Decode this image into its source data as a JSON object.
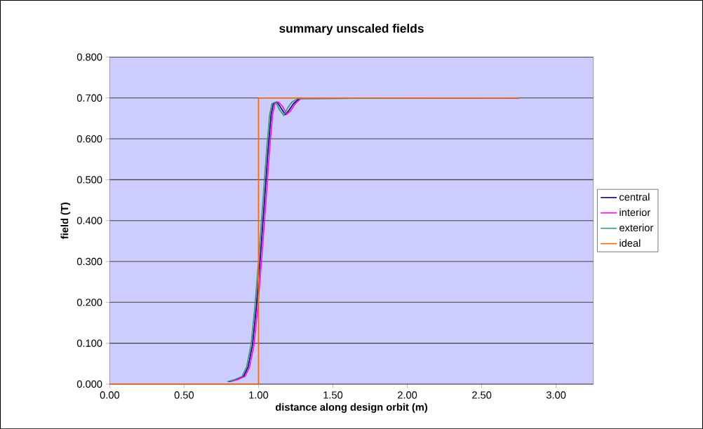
{
  "chart_data": {
    "type": "line",
    "title": "summary unscaled fields",
    "xlabel": "distance along design orbit  (m)",
    "ylabel": "field (T)",
    "xlim": [
      0,
      3.25
    ],
    "xticks": [
      {
        "value": 0,
        "label": "0.00"
      },
      {
        "value": 0.5,
        "label": "0.50"
      },
      {
        "value": 1,
        "label": "1.00"
      },
      {
        "value": 1.5,
        "label": "1.50"
      },
      {
        "value": 2,
        "label": "2.00"
      },
      {
        "value": 2.5,
        "label": "2.50"
      },
      {
        "value": 3,
        "label": "3.00"
      }
    ],
    "ylim": [
      0,
      0.8
    ],
    "yticks": [
      {
        "value": 0,
        "label": "0.000"
      },
      {
        "value": 0.1,
        "label": "0.100"
      },
      {
        "value": 0.2,
        "label": "0.200"
      },
      {
        "value": 0.3,
        "label": "0.300"
      },
      {
        "value": 0.4,
        "label": "0.400"
      },
      {
        "value": 0.5,
        "label": "0.500"
      },
      {
        "value": 0.6,
        "label": "0.600"
      },
      {
        "value": 0.7,
        "label": "0.700"
      },
      {
        "value": 0.8,
        "label": "0.800"
      }
    ],
    "grid": "y",
    "legend": "right",
    "line_style": "solid",
    "marker": "none",
    "series": [
      {
        "name": "central",
        "color": "#000080",
        "x": [
          0.8,
          0.85,
          0.9,
          0.93,
          0.96,
          0.985,
          1.01,
          1.04,
          1.065,
          1.085,
          1.1,
          1.125,
          1.15,
          1.18,
          1.205,
          1.235,
          1.275,
          2.75
        ],
        "values": [
          0.006,
          0.011,
          0.019,
          0.042,
          0.097,
          0.187,
          0.3,
          0.447,
          0.577,
          0.66,
          0.686,
          0.69,
          0.676,
          0.659,
          0.67,
          0.686,
          0.699,
          0.7
        ]
      },
      {
        "name": "interior",
        "color": "#ff00ff",
        "x": [
          0.81,
          0.86,
          0.91,
          0.94,
          0.97,
          0.995,
          1.02,
          1.05,
          1.075,
          1.095,
          1.11,
          1.135,
          1.16,
          1.19,
          1.215,
          1.245,
          1.285,
          2.75
        ],
        "values": [
          0.006,
          0.011,
          0.019,
          0.042,
          0.097,
          0.187,
          0.3,
          0.447,
          0.577,
          0.66,
          0.686,
          0.69,
          0.68,
          0.66,
          0.668,
          0.685,
          0.699,
          0.7
        ]
      },
      {
        "name": "exterior",
        "color": "#339966",
        "x": [
          0.79,
          0.84,
          0.89,
          0.92,
          0.95,
          0.975,
          1.0,
          1.03,
          1.055,
          1.075,
          1.09,
          1.115,
          1.14,
          1.17,
          1.195,
          1.225,
          1.265,
          2.75
        ],
        "values": [
          0.006,
          0.011,
          0.019,
          0.042,
          0.097,
          0.187,
          0.3,
          0.447,
          0.577,
          0.66,
          0.686,
          0.69,
          0.672,
          0.657,
          0.675,
          0.69,
          0.699,
          0.7
        ]
      },
      {
        "name": "ideal",
        "color": "#ff6600",
        "x": [
          0,
          1.0,
          1.0,
          2.75
        ],
        "values": [
          0,
          0,
          0.7,
          0.7
        ]
      }
    ]
  }
}
